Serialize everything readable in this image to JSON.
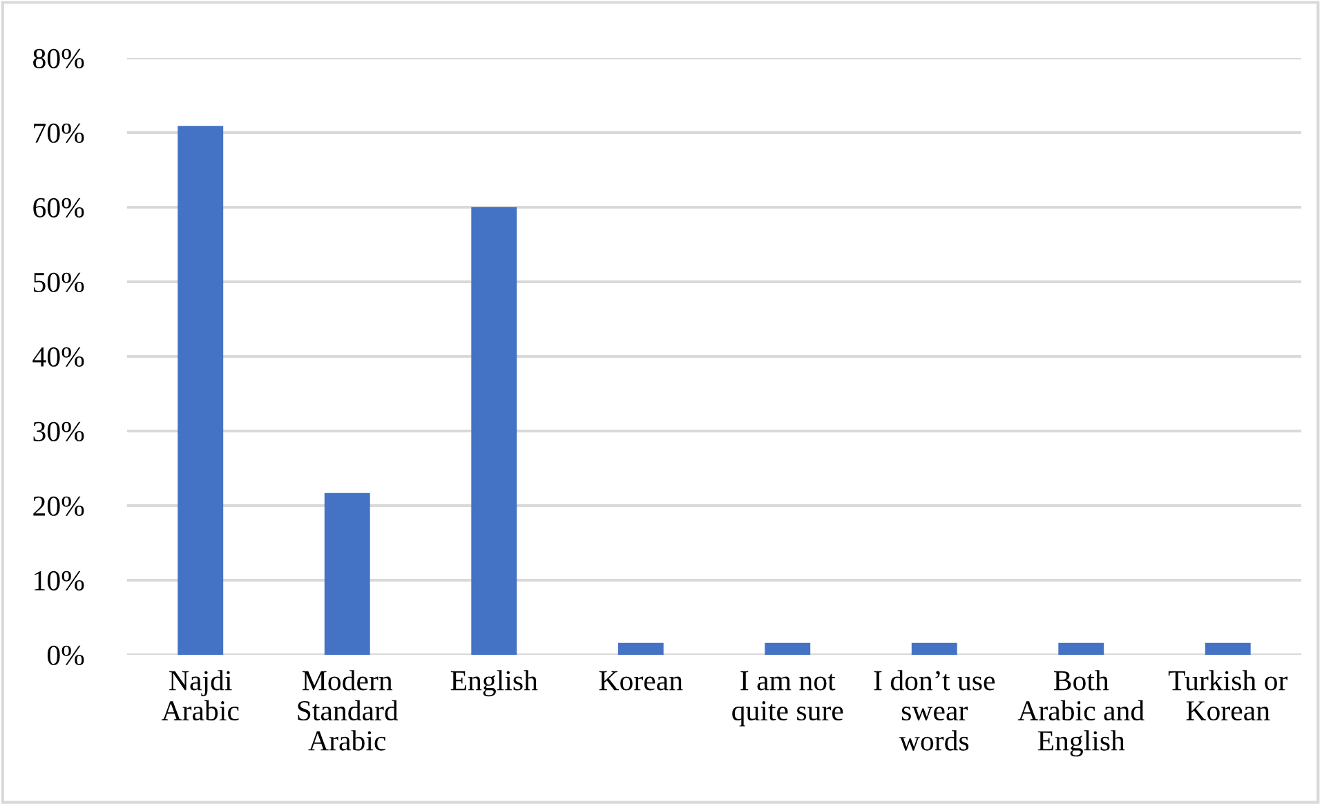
{
  "chart_data": {
    "type": "bar",
    "categories": [
      "Najdi\nArabic",
      "Modern\nStandard\nArabic",
      "English",
      "Korean",
      "I am not\nquite sure",
      "I don’t use\nswear\nwords",
      "Both\nArabic and\nEnglish",
      "Turkish or\nKorean"
    ],
    "values": [
      70.9,
      21.7,
      60,
      1.6,
      1.6,
      1.6,
      1.6,
      1.6
    ],
    "color": "#4472c4",
    "ylim": [
      0,
      80
    ],
    "yticks": [
      {
        "value": 0,
        "label": "0%"
      },
      {
        "value": 10,
        "label": "10%"
      },
      {
        "value": 20,
        "label": "20%"
      },
      {
        "value": 30,
        "label": "30%"
      },
      {
        "value": 40,
        "label": "40%"
      },
      {
        "value": 50,
        "label": "50%"
      },
      {
        "value": 60,
        "label": "60%"
      },
      {
        "value": 70,
        "label": "70%"
      },
      {
        "value": 80,
        "label": "80%"
      }
    ],
    "grid": "y"
  }
}
